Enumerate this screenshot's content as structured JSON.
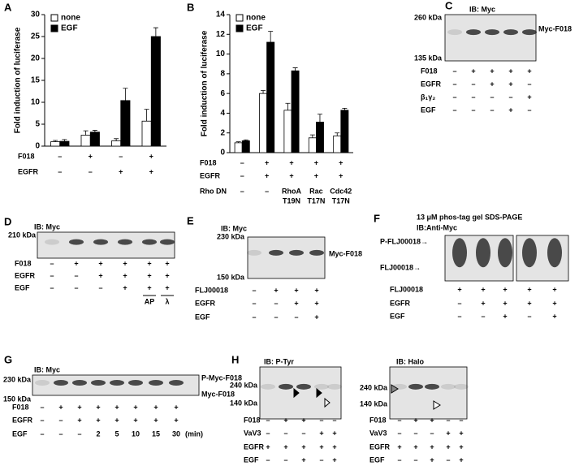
{
  "chart_data": [
    {
      "type": "bar",
      "panel": "A",
      "ylabel": "Fold induction of luciferase",
      "ylim": [
        0,
        30
      ],
      "yticks": [
        0,
        5,
        10,
        15,
        20,
        25,
        30
      ],
      "categories": [
        null,
        null,
        null,
        null
      ],
      "legend": "upper left",
      "series": [
        {
          "name": "none",
          "color": "#ffffff",
          "values": [
            1,
            2.5,
            1.2,
            5.7
          ],
          "errors": [
            0.3,
            1,
            0.5,
            2.7
          ]
        },
        {
          "name": "EGF",
          "color": "#000000",
          "values": [
            1.1,
            3.2,
            10.4,
            25
          ],
          "errors": [
            0.4,
            0.4,
            2.8,
            2
          ]
        }
      ],
      "conditions": [
        {
          "label": "F018",
          "cells": [
            "–",
            "+",
            "–",
            "+"
          ]
        },
        {
          "label": "EGFR",
          "cells": [
            "–",
            "–",
            "+",
            "+"
          ]
        }
      ]
    },
    {
      "type": "bar",
      "panel": "B",
      "ylabel": "Fold induction of luciferase",
      "ylim": [
        0,
        14
      ],
      "yticks": [
        0,
        2,
        4,
        6,
        8,
        10,
        12,
        14
      ],
      "categories": [
        null,
        null,
        null,
        null,
        null
      ],
      "legend": "upper left",
      "series": [
        {
          "name": "none",
          "color": "#ffffff",
          "values": [
            1,
            6,
            4.3,
            1.5,
            1.7
          ],
          "errors": [
            0.1,
            0.3,
            0.7,
            0.3,
            0.3
          ]
        },
        {
          "name": "EGF",
          "color": "#000000",
          "values": [
            1.2,
            11.2,
            8.3,
            3.1,
            4.3
          ],
          "errors": [
            0.1,
            1.1,
            0.3,
            0.8,
            0.2
          ]
        }
      ],
      "conditions": [
        {
          "label": "F018",
          "cells": [
            "–",
            "+",
            "+",
            "+",
            "+"
          ]
        },
        {
          "label": "EGFR",
          "cells": [
            "–",
            "+",
            "+",
            "+",
            "+"
          ]
        },
        {
          "label": "Rho DN",
          "cells": [
            "–",
            "–",
            [
              "RhoA",
              "T19N"
            ],
            [
              "Rac",
              "T17N"
            ],
            [
              "Cdc42",
              "T17N"
            ]
          ]
        }
      ]
    }
  ],
  "blots": [
    {
      "panel": "C",
      "header": "IB: Myc",
      "markers": [
        "260 kDa",
        "135 kDa"
      ],
      "side_labels": [
        "Myc-F018"
      ],
      "rows": [
        {
          "label": "F018",
          "cells": [
            "–",
            "+",
            "+",
            "+",
            "+"
          ]
        },
        {
          "label": "EGFR",
          "cells": [
            "–",
            "–",
            "+",
            "+",
            "–"
          ]
        },
        {
          "label": "β₁γ₂",
          "cells": [
            "–",
            "–",
            "–",
            "–",
            "+"
          ]
        },
        {
          "label": "EGF",
          "cells": [
            "–",
            "–",
            "–",
            "+",
            "–"
          ]
        }
      ]
    },
    {
      "panel": "D",
      "header": "IB: Myc",
      "markers": [
        "210 kDa"
      ],
      "rows": [
        {
          "label": "F018",
          "cells": [
            "–",
            "+",
            "+",
            "+",
            "+",
            "+"
          ]
        },
        {
          "label": "EGFR",
          "cells": [
            "–",
            "–",
            "+",
            "+",
            "+",
            "+"
          ]
        },
        {
          "label": "EGF",
          "cells": [
            "–",
            "–",
            "–",
            "+",
            "+",
            "+"
          ]
        },
        {
          "label": null,
          "cells": [
            null,
            null,
            null,
            null,
            "AP",
            "λ"
          ]
        }
      ]
    },
    {
      "panel": "E",
      "header": "IB: Myc",
      "markers": [
        "230 kDa",
        "150 kDa"
      ],
      "side_labels": [
        "Myc-F018"
      ],
      "rows": [
        {
          "label": "FLJ00018",
          "cells": [
            "–",
            "+",
            "+",
            "+"
          ]
        },
        {
          "label": "EGFR",
          "cells": [
            "–",
            "–",
            "+",
            "+"
          ]
        },
        {
          "label": "EGF",
          "cells": [
            "–",
            "–",
            "–",
            "+"
          ]
        }
      ]
    },
    {
      "panel": "F",
      "title": [
        "13 μM phos-tag gel SDS-PAGE",
        "IB:Anti-Myc"
      ],
      "side_labels": [
        "P-FLJ00018→",
        "FLJ00018→"
      ],
      "rows": [
        {
          "label": "FLJ00018",
          "cells": [
            "+",
            "+",
            "+",
            "+",
            "+"
          ]
        },
        {
          "label": "EGFR",
          "cells": [
            "–",
            "+",
            "+",
            "+",
            "+"
          ]
        },
        {
          "label": "EGF",
          "cells": [
            "–",
            "–",
            "+",
            "–",
            "+"
          ]
        }
      ]
    },
    {
      "panel": "G",
      "header": "IB: Myc",
      "markers": [
        "230 kDa",
        "150 kDa"
      ],
      "side_labels": [
        "P-Myc-F018",
        "Myc-F018"
      ],
      "unit": "(min)",
      "rows": [
        {
          "label": "F018",
          "cells": [
            "–",
            "+",
            "+",
            "+",
            "+",
            "+",
            "+",
            "+"
          ]
        },
        {
          "label": "EGFR",
          "cells": [
            "–",
            "–",
            "+",
            "+",
            "+",
            "+",
            "+",
            "+"
          ]
        },
        {
          "label": "EGF",
          "cells": [
            "–",
            "–",
            "–",
            "2",
            "5",
            "10",
            "15",
            "30"
          ]
        }
      ]
    },
    {
      "panel": "H",
      "header": "IB: P-Tyr",
      "markers": [
        "240 kDa",
        "140 kDa"
      ],
      "rows": [
        {
          "label": "F018",
          "cells": [
            "–",
            "+",
            "+",
            "–",
            "–"
          ]
        },
        {
          "label": "VaV3",
          "cells": [
            "–",
            "–",
            "–",
            "+",
            "+"
          ]
        },
        {
          "label": "EGFR",
          "cells": [
            "+",
            "+",
            "+",
            "+",
            "+"
          ]
        },
        {
          "label": "EGF",
          "cells": [
            "–",
            "–",
            "+",
            "–",
            "+"
          ]
        }
      ]
    },
    {
      "header": "IB: Halo",
      "markers": [
        "240 kDa",
        "140 kDa"
      ],
      "rows": [
        {
          "label": "F018",
          "cells": [
            "–",
            "+",
            "+",
            "–",
            "–"
          ]
        },
        {
          "label": "VaV3",
          "cells": [
            "–",
            "–",
            "–",
            "+",
            "+"
          ]
        },
        {
          "label": "EGFR",
          "cells": [
            "+",
            "+",
            "+",
            "+",
            "+"
          ]
        },
        {
          "label": "EGF",
          "cells": [
            "–",
            "–",
            "+",
            "–",
            "+"
          ]
        }
      ]
    }
  ]
}
